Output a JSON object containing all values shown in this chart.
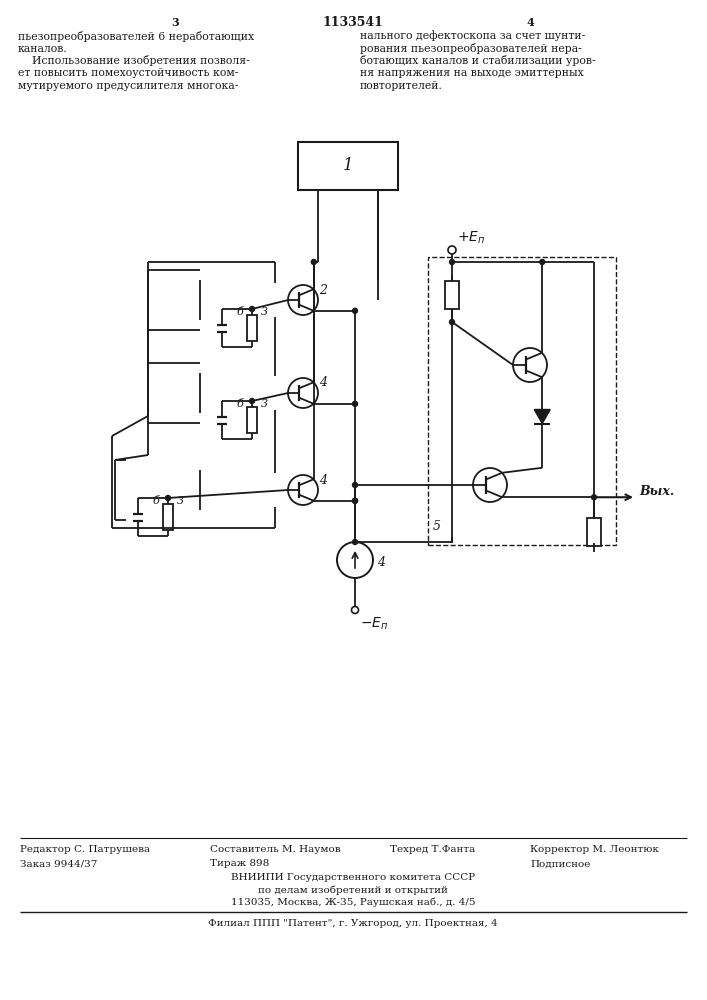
{
  "bg_color": "#ffffff",
  "line_color": "#1a1a1a",
  "text_color": "#1a1a1a",
  "header_left_lines": [
    "пьезопреобразователей 6 неработающих",
    "каналов.",
    "    Использование изобретения позволя-",
    "ет повысить помехоустойчивость ком-",
    "мутируемого предусилителя многока-"
  ],
  "header_right_lines": [
    "нального дефектоскопа за счет шунти-",
    "рования пьезопреобразователей нера-",
    "ботающих каналов и стабилизации уров-",
    "ня напряжения на выходе эмиттерных",
    "повторителей."
  ],
  "footer_editor": "Редактор С. Патрушева",
  "footer_compiler": "Составитель М. Наумов",
  "footer_tech": "Техред Т.Фанта",
  "footer_corrector": "Корректор М. Леонтюк",
  "footer_order": "Заказ 9944/37",
  "footer_tirage": "Тираж 898",
  "footer_podp": "Подписное",
  "footer_vniiipi_lines": [
    "ВНИИПИ Государственного комитета СССР",
    "по делам изобретений и открытий",
    "113035, Москва, Ж-35, Раушская наб., д. 4/5"
  ],
  "footer_filial": "Филиал ППП \"Патент\", г. Ужгород, ул. Проектная, 4"
}
